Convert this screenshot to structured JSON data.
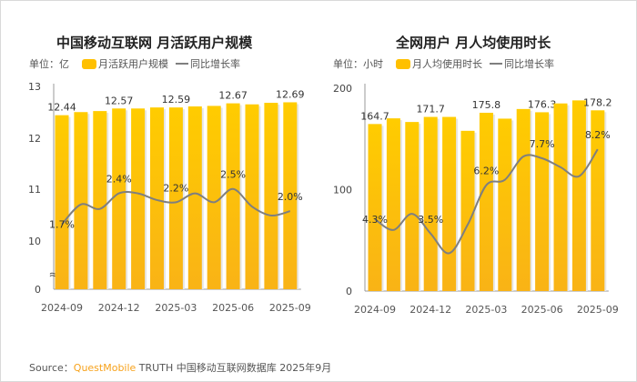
{
  "colors": {
    "bar": "#ffc000",
    "bar_bottom": "#f9b316",
    "line": "#7f7f7f",
    "brand": "#f7a21b"
  },
  "chart_data": [
    {
      "type": "bar",
      "title": "中国移动互联网 月活跃用户规模",
      "unit_label": "单位：亿",
      "legend": [
        "月活跃用户规模",
        "同比增长率"
      ],
      "legend_placement": "top",
      "categories": [
        "2024-09",
        "2024-10",
        "2024-11",
        "2024-12",
        "2025-01",
        "2025-02",
        "2025-03",
        "2025-04",
        "2025-05",
        "2025-06",
        "2025-07",
        "2025-08",
        "2025-09"
      ],
      "x_tick_labels": [
        "2024-09",
        "2024-12",
        "2025-03",
        "2025-06",
        "2025-09"
      ],
      "y_tick_labels": [
        "0",
        "10",
        "11",
        "12",
        "13"
      ],
      "axis_break": true,
      "ylim": [
        0,
        13
      ],
      "series": [
        {
          "name": "月活跃用户规模",
          "type": "bar",
          "values": [
            12.44,
            12.5,
            12.52,
            12.57,
            12.57,
            12.59,
            12.59,
            12.61,
            12.62,
            12.67,
            12.65,
            12.68,
            12.69
          ]
        },
        {
          "name": "同比增长率",
          "type": "line",
          "unit": "%",
          "values": [
            1.7,
            2.15,
            2.05,
            2.4,
            2.4,
            2.25,
            2.2,
            2.4,
            2.2,
            2.5,
            2.1,
            1.9,
            2.0
          ]
        }
      ],
      "data_labels": {
        "bars": [
          "12.44",
          "",
          "",
          "12.57",
          "",
          "",
          "12.59",
          "",
          "",
          "12.67",
          "",
          "",
          "12.69"
        ],
        "line": [
          "1.7%",
          "",
          "",
          "2.4%",
          "",
          "",
          "2.2%",
          "",
          "",
          "2.5%",
          "",
          "",
          "2.0%"
        ]
      }
    },
    {
      "type": "bar",
      "title": "全网用户 月人均使用时长",
      "unit_label": "单位：小时",
      "legend": [
        "月人均使用时长",
        "同比增长率"
      ],
      "legend_placement": "top",
      "categories": [
        "2024-09",
        "2024-10",
        "2024-11",
        "2024-12",
        "2025-01",
        "2025-02",
        "2025-03",
        "2025-04",
        "2025-05",
        "2025-06",
        "2025-07",
        "2025-08",
        "2025-09"
      ],
      "x_tick_labels": [
        "2024-09",
        "2024-12",
        "2025-03",
        "2025-06",
        "2025-09"
      ],
      "y_tick_labels": [
        "0",
        "100",
        "200"
      ],
      "ylim": [
        0,
        200
      ],
      "series": [
        {
          "name": "月人均使用时长",
          "type": "bar",
          "values": [
            164.7,
            170.3,
            166.7,
            171.7,
            171.7,
            158.0,
            175.8,
            170.0,
            179.5,
            176.3,
            185.0,
            188.0,
            178.2
          ]
        },
        {
          "name": "同比增长率",
          "type": "line",
          "unit": "%",
          "values": [
            4.3,
            3.7,
            4.6,
            3.5,
            2.4,
            4.0,
            6.2,
            6.5,
            7.8,
            7.7,
            7.2,
            6.7,
            8.2
          ]
        }
      ],
      "data_labels": {
        "bars": [
          "164.7",
          "",
          "",
          "171.7",
          "",
          "",
          "175.8",
          "",
          "",
          "176.3",
          "",
          "",
          "178.2"
        ],
        "line": [
          "4.3%",
          "",
          "",
          "3.5%",
          "",
          "",
          "6.2%",
          "",
          "",
          "7.7%",
          "",
          "",
          "8.2%"
        ]
      }
    }
  ],
  "source": {
    "prefix": "Source：",
    "brand": "QuestMobile",
    "rest": " TRUTH 中国移动互联网数据库 2025年9月"
  }
}
